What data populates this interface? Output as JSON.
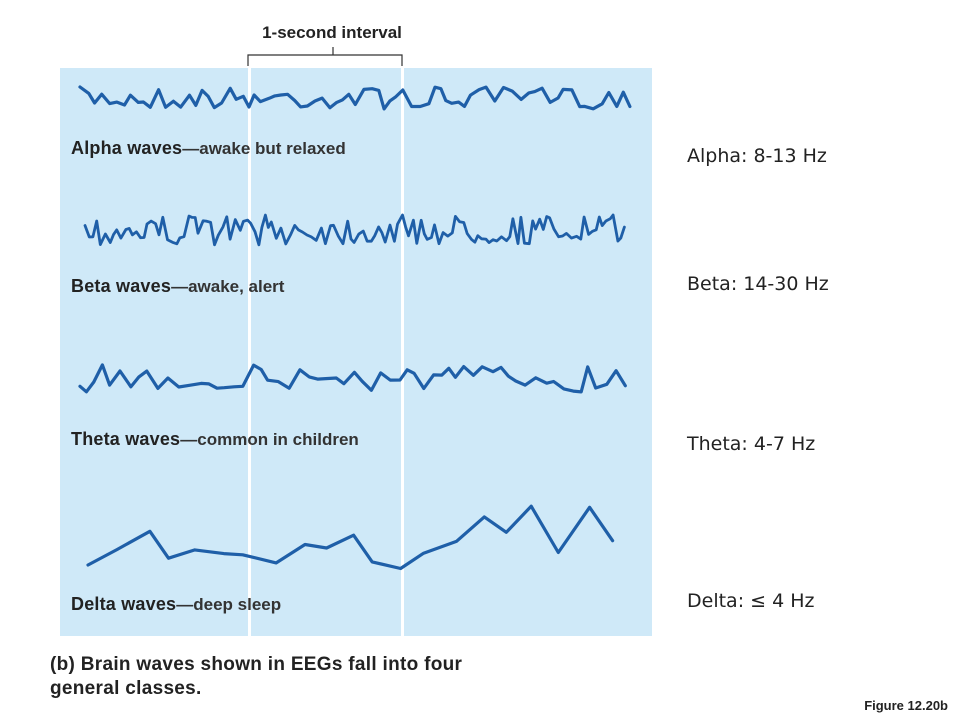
{
  "interval_label": "1-second interval",
  "waves": [
    {
      "name": "Alpha waves",
      "desc": "—awake but relaxed"
    },
    {
      "name": "Beta waves",
      "desc": "—awake, alert"
    },
    {
      "name": "Theta waves",
      "desc": "—common in children"
    },
    {
      "name": "Delta waves",
      "desc": "—deep sleep"
    }
  ],
  "caption": "(b) Brain waves shown in EEGs fall into four general classes.",
  "frequencies": [
    "Alpha: 8-13 Hz",
    "Beta: 14-30 Hz",
    "Theta: 4-7 Hz",
    "Delta: ≤ 4 Hz"
  ],
  "figure_number": "Figure 12.20b",
  "colors": {
    "panel_bg": "#cfe9f8",
    "wave_stroke": "#1f5fa8",
    "guide_lines": "#ffffff"
  }
}
